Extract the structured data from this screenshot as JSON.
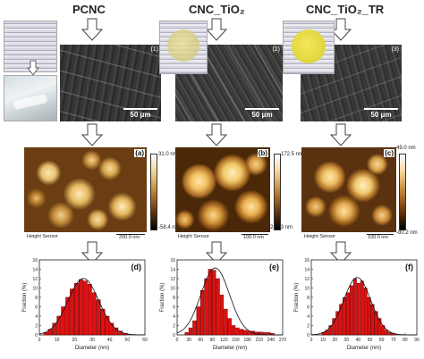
{
  "columns": [
    {
      "title": "PCNC",
      "sem_panel": "(1)",
      "sem_scale": "50 μm"
    },
    {
      "title": "CNC_TiO₂",
      "sem_panel": "(2)",
      "sem_scale": "50 μm"
    },
    {
      "title": "CNC_TiO₂_TR",
      "sem_panel": "(3)",
      "sem_scale": "50 μm"
    }
  ],
  "afm": [
    {
      "label": "(a)",
      "cbar_max": "31.0 nm",
      "cbar_min": "-58.4 nm",
      "sensor": "Height Sensor",
      "scale": "200.0 nm"
    },
    {
      "label": "(b)",
      "cbar_max": "172.5 nm",
      "cbar_min": "-247.3 nm",
      "sensor": "Height Sensor",
      "scale": "100.0 nm"
    },
    {
      "label": "(c)",
      "cbar_max": "49.0 nm",
      "cbar_min": "-80.2 nm",
      "sensor": "Height Sensor",
      "scale": "100.0 nm"
    }
  ],
  "chart_data": [
    {
      "type": "bar",
      "label": "(d)",
      "xlabel": "Diameter (nm)",
      "ylabel": "Fraction (%)",
      "xlim": [
        0,
        60
      ],
      "ylim": [
        0,
        16
      ],
      "xticks": [
        0,
        10,
        20,
        30,
        40,
        50,
        60
      ],
      "yticks": [
        0,
        2,
        4,
        6,
        8,
        10,
        12,
        14,
        16
      ],
      "bin_width": 2.5,
      "x": [
        3.75,
        6.25,
        8.75,
        11.25,
        13.75,
        16.25,
        18.75,
        21.25,
        23.75,
        26.25,
        28.75,
        31.25,
        33.75,
        36.25,
        38.75,
        41.25,
        43.75,
        46.25,
        48.75
      ],
      "values": [
        0.5,
        1.2,
        2.5,
        4.0,
        6.0,
        8.0,
        9.8,
        11.0,
        11.8,
        11.5,
        10.8,
        9.0,
        7.5,
        5.5,
        4.0,
        2.5,
        1.5,
        0.8,
        0.3
      ],
      "fit": "gaussian"
    },
    {
      "type": "bar",
      "label": "(e)",
      "xlabel": "Diameter (nm)",
      "ylabel": "Fraction (%)",
      "xlim": [
        0,
        270
      ],
      "ylim": [
        0,
        16
      ],
      "xticks": [
        0,
        30,
        60,
        90,
        120,
        150,
        180,
        210,
        240,
        270
      ],
      "yticks": [
        0,
        2,
        4,
        6,
        8,
        10,
        12,
        14,
        16
      ],
      "bin_width": 10,
      "x": [
        25,
        35,
        45,
        55,
        65,
        75,
        85,
        95,
        105,
        115,
        125,
        135,
        145,
        155,
        165,
        175,
        185,
        195,
        205,
        215,
        225,
        235,
        245
      ],
      "values": [
        0.5,
        1.5,
        3.0,
        6.0,
        9.5,
        12.0,
        14.0,
        13.8,
        12.0,
        8.5,
        5.5,
        3.5,
        2.0,
        1.5,
        1.2,
        1.0,
        0.8,
        0.8,
        0.6,
        0.6,
        0.5,
        0.5,
        0.3
      ],
      "fit": "gaussian"
    },
    {
      "type": "bar",
      "label": "(f)",
      "xlabel": "Diameter (nm)",
      "ylabel": "Fraction (%)",
      "xlim": [
        0,
        90
      ],
      "ylim": [
        0,
        16
      ],
      "xticks": [
        0,
        10,
        20,
        30,
        40,
        50,
        60,
        70,
        80,
        90
      ],
      "yticks": [
        0,
        2,
        4,
        6,
        8,
        10,
        12,
        14,
        16
      ],
      "bin_width": 3,
      "x": [
        10.5,
        13.5,
        16.5,
        19.5,
        22.5,
        25.5,
        28.5,
        31.5,
        34.5,
        37.5,
        40.5,
        43.5,
        46.5,
        49.5,
        52.5,
        55.5,
        58.5,
        61.5,
        64.5,
        67.5,
        70.5
      ],
      "values": [
        0.5,
        1.0,
        2.0,
        3.5,
        5.0,
        6.5,
        8.0,
        9.0,
        10.5,
        12.0,
        11.0,
        11.5,
        10.0,
        8.0,
        6.5,
        5.0,
        3.5,
        2.0,
        1.0,
        0.5,
        0.3
      ],
      "fit": "gaussian"
    }
  ],
  "colors": {
    "bar_fill": "#e01010",
    "bar_edge": "#6a0000",
    "fit_line": "#111111"
  }
}
